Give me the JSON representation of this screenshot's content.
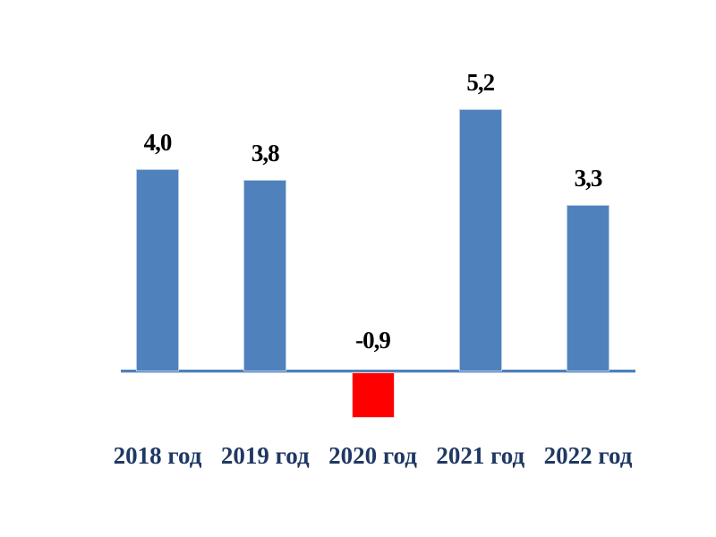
{
  "chart_data": {
    "type": "bar",
    "categories": [
      "2018 год",
      "2019 год",
      "2020 год",
      "2021 год",
      "2022 год"
    ],
    "values": [
      4.0,
      3.8,
      -0.9,
      5.2,
      3.3
    ],
    "labels": [
      "4,0",
      "3,8",
      "-0,9",
      "5,2",
      "3,3"
    ],
    "title": "",
    "xlabel": "",
    "ylabel": "",
    "ylim": [
      -1.5,
      6
    ],
    "grid": false,
    "legend": false,
    "data_labels": true,
    "colors": {
      "bar_positive": "#4f81bd",
      "bar_positive_border": "#b9cde5",
      "bar_negative": "#ff0000",
      "bar_negative_border": "#ffd2d2",
      "axis_line": "#4f81bd",
      "value_label": "#000000",
      "category_label": "#1f3864",
      "background": "#ffffff"
    }
  }
}
